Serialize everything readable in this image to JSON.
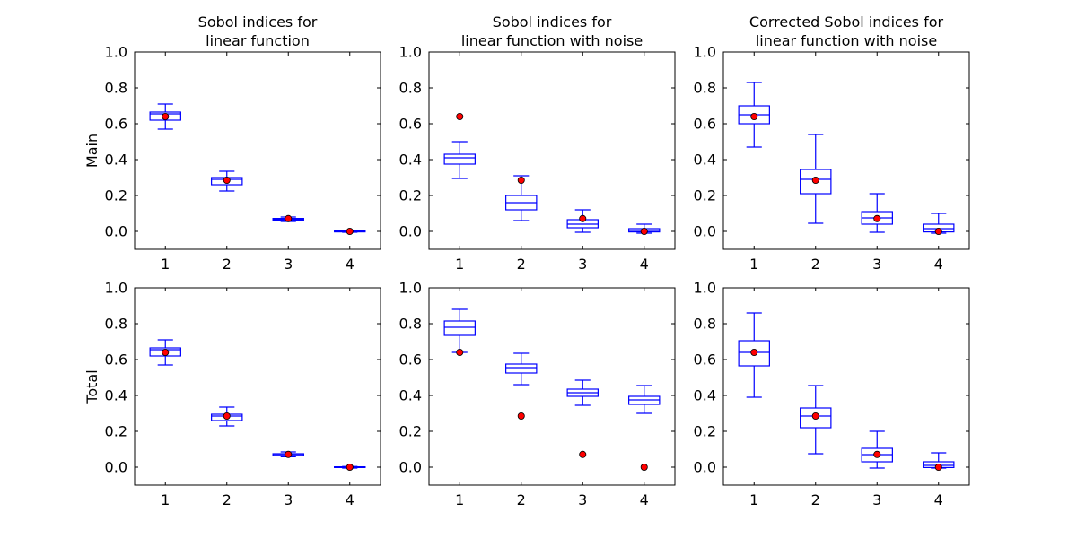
{
  "chart_data": [
    {
      "type": "box",
      "title_lines": [
        "Sobol indices for",
        "linear function"
      ],
      "ylabel": "Main",
      "categories": [
        "1",
        "2",
        "3",
        "4"
      ],
      "ylim": [
        -0.1,
        1.0
      ],
      "yticks": [
        "0.0",
        "0.2",
        "0.4",
        "0.6",
        "0.8",
        "1.0"
      ],
      "boxes": [
        {
          "whislo": 0.57,
          "q1": 0.62,
          "med": 0.655,
          "q3": 0.665,
          "whishi": 0.71
        },
        {
          "whislo": 0.225,
          "q1": 0.26,
          "med": 0.29,
          "q3": 0.3,
          "whishi": 0.335
        },
        {
          "whislo": 0.055,
          "q1": 0.063,
          "med": 0.068,
          "q3": 0.072,
          "whishi": 0.08
        },
        {
          "whislo": -0.005,
          "q1": -0.003,
          "med": 0.0,
          "q3": 0.002,
          "whishi": 0.004
        }
      ],
      "true_values": [
        0.64,
        0.285,
        0.071,
        0.0
      ]
    },
    {
      "type": "box",
      "title_lines": [
        "Sobol indices for",
        "linear function with noise"
      ],
      "ylabel": "",
      "categories": [
        "1",
        "2",
        "3",
        "4"
      ],
      "ylim": [
        -0.1,
        1.0
      ],
      "yticks": [
        "0.0",
        "0.2",
        "0.4",
        "0.6",
        "0.8",
        "1.0"
      ],
      "boxes": [
        {
          "whislo": 0.295,
          "q1": 0.375,
          "med": 0.41,
          "q3": 0.43,
          "whishi": 0.5
        },
        {
          "whislo": 0.06,
          "q1": 0.12,
          "med": 0.16,
          "q3": 0.2,
          "whishi": 0.31
        },
        {
          "whislo": -0.005,
          "q1": 0.02,
          "med": 0.04,
          "q3": 0.065,
          "whishi": 0.12
        },
        {
          "whislo": -0.01,
          "q1": -0.003,
          "med": 0.005,
          "q3": 0.015,
          "whishi": 0.04
        }
      ],
      "true_values": [
        0.64,
        0.285,
        0.071,
        0.0
      ]
    },
    {
      "type": "box",
      "title_lines": [
        "Corrected Sobol indices for",
        "linear function with noise"
      ],
      "ylabel": "",
      "categories": [
        "1",
        "2",
        "3",
        "4"
      ],
      "ylim": [
        -0.1,
        1.0
      ],
      "yticks": [
        "0.0",
        "0.2",
        "0.4",
        "0.6",
        "0.8",
        "1.0"
      ],
      "boxes": [
        {
          "whislo": 0.47,
          "q1": 0.6,
          "med": 0.65,
          "q3": 0.7,
          "whishi": 0.83
        },
        {
          "whislo": 0.045,
          "q1": 0.21,
          "med": 0.29,
          "q3": 0.345,
          "whishi": 0.54
        },
        {
          "whislo": -0.005,
          "q1": 0.04,
          "med": 0.075,
          "q3": 0.11,
          "whishi": 0.21
        },
        {
          "whislo": -0.01,
          "q1": -0.003,
          "med": 0.015,
          "q3": 0.04,
          "whishi": 0.1
        }
      ],
      "true_values": [
        0.64,
        0.285,
        0.071,
        0.0
      ]
    },
    {
      "type": "box",
      "title_lines": [],
      "ylabel": "Total",
      "categories": [
        "1",
        "2",
        "3",
        "4"
      ],
      "ylim": [
        -0.1,
        1.0
      ],
      "yticks": [
        "0.0",
        "0.2",
        "0.4",
        "0.6",
        "0.8",
        "1.0"
      ],
      "boxes": [
        {
          "whislo": 0.57,
          "q1": 0.62,
          "med": 0.655,
          "q3": 0.665,
          "whishi": 0.71
        },
        {
          "whislo": 0.23,
          "q1": 0.26,
          "med": 0.285,
          "q3": 0.295,
          "whishi": 0.335
        },
        {
          "whislo": 0.058,
          "q1": 0.063,
          "med": 0.069,
          "q3": 0.075,
          "whishi": 0.085
        },
        {
          "whislo": -0.005,
          "q1": -0.002,
          "med": 0.0,
          "q3": 0.002,
          "whishi": 0.004
        }
      ],
      "true_values": [
        0.64,
        0.285,
        0.071,
        0.0
      ]
    },
    {
      "type": "box",
      "title_lines": [],
      "ylabel": "",
      "categories": [
        "1",
        "2",
        "3",
        "4"
      ],
      "ylim": [
        -0.1,
        1.0
      ],
      "yticks": [
        "0.0",
        "0.2",
        "0.4",
        "0.6",
        "0.8",
        "1.0"
      ],
      "boxes": [
        {
          "whislo": 0.64,
          "q1": 0.735,
          "med": 0.78,
          "q3": 0.815,
          "whishi": 0.88
        },
        {
          "whislo": 0.46,
          "q1": 0.525,
          "med": 0.555,
          "q3": 0.575,
          "whishi": 0.635
        },
        {
          "whislo": 0.345,
          "q1": 0.395,
          "med": 0.415,
          "q3": 0.435,
          "whishi": 0.485
        },
        {
          "whislo": 0.3,
          "q1": 0.35,
          "med": 0.375,
          "q3": 0.395,
          "whishi": 0.455
        }
      ],
      "true_values": [
        0.64,
        0.285,
        0.071,
        0.0
      ]
    },
    {
      "type": "box",
      "title_lines": [],
      "ylabel": "",
      "categories": [
        "1",
        "2",
        "3",
        "4"
      ],
      "ylim": [
        -0.1,
        1.0
      ],
      "yticks": [
        "0.0",
        "0.2",
        "0.4",
        "0.6",
        "0.8",
        "1.0"
      ],
      "boxes": [
        {
          "whislo": 0.39,
          "q1": 0.565,
          "med": 0.64,
          "q3": 0.705,
          "whishi": 0.86
        },
        {
          "whislo": 0.075,
          "q1": 0.22,
          "med": 0.285,
          "q3": 0.33,
          "whishi": 0.455
        },
        {
          "whislo": -0.005,
          "q1": 0.03,
          "med": 0.07,
          "q3": 0.105,
          "whishi": 0.2
        },
        {
          "whislo": -0.005,
          "q1": -0.002,
          "med": 0.01,
          "q3": 0.03,
          "whishi": 0.08
        }
      ],
      "true_values": [
        0.64,
        0.285,
        0.071,
        0.0
      ]
    }
  ],
  "colors": {
    "box": "#0000ff",
    "marker_fill": "#ff0000",
    "marker_edge": "#000000",
    "axes": "#000000"
  }
}
